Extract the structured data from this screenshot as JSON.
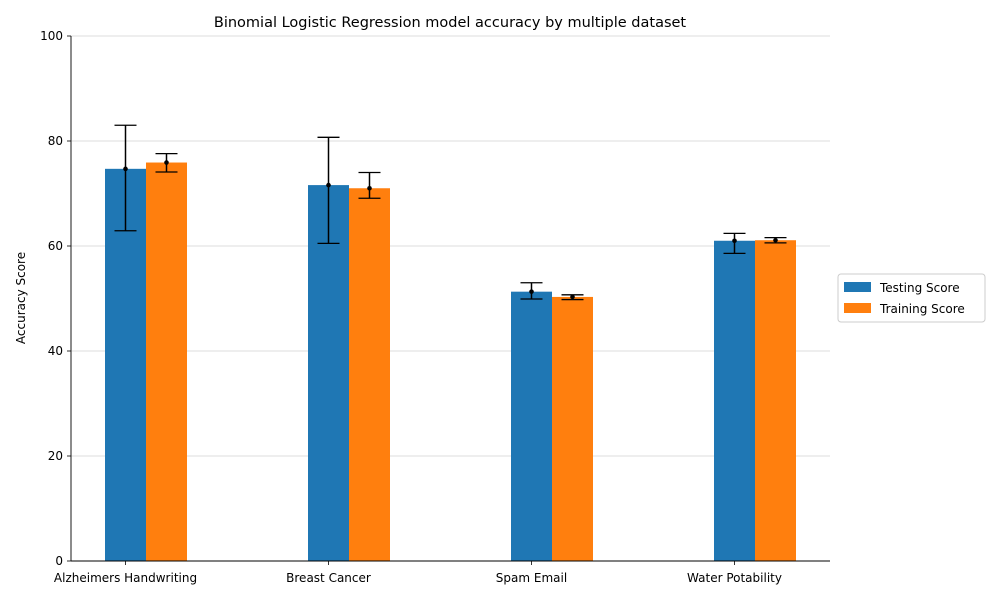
{
  "chart_data": {
    "type": "bar",
    "title": "Binomial Logistic Regression model accuracy by multiple dataset",
    "xlabel": "",
    "ylabel": "Accuracy Score",
    "ylim": [
      0,
      100
    ],
    "yticks": [
      0,
      20,
      40,
      60,
      80,
      100
    ],
    "grid": "horizontal",
    "legend_position": "right",
    "categories": [
      "Alzheimers Handwriting",
      "Breast Cancer",
      "Spam Email",
      "Water Potability"
    ],
    "series": [
      {
        "name": "Testing Score",
        "color": "#1f77b4",
        "values": [
          74.7,
          71.6,
          51.3,
          61.0
        ],
        "error_low": [
          62.9,
          60.5,
          49.9,
          58.6
        ],
        "error_high": [
          83.0,
          80.7,
          53.0,
          62.4
        ]
      },
      {
        "name": "Training Score",
        "color": "#ff7f0e",
        "values": [
          75.9,
          71.0,
          50.3,
          61.1
        ],
        "error_low": [
          74.1,
          69.1,
          49.8,
          60.6
        ],
        "error_high": [
          77.6,
          74.0,
          50.7,
          61.6
        ]
      }
    ]
  }
}
